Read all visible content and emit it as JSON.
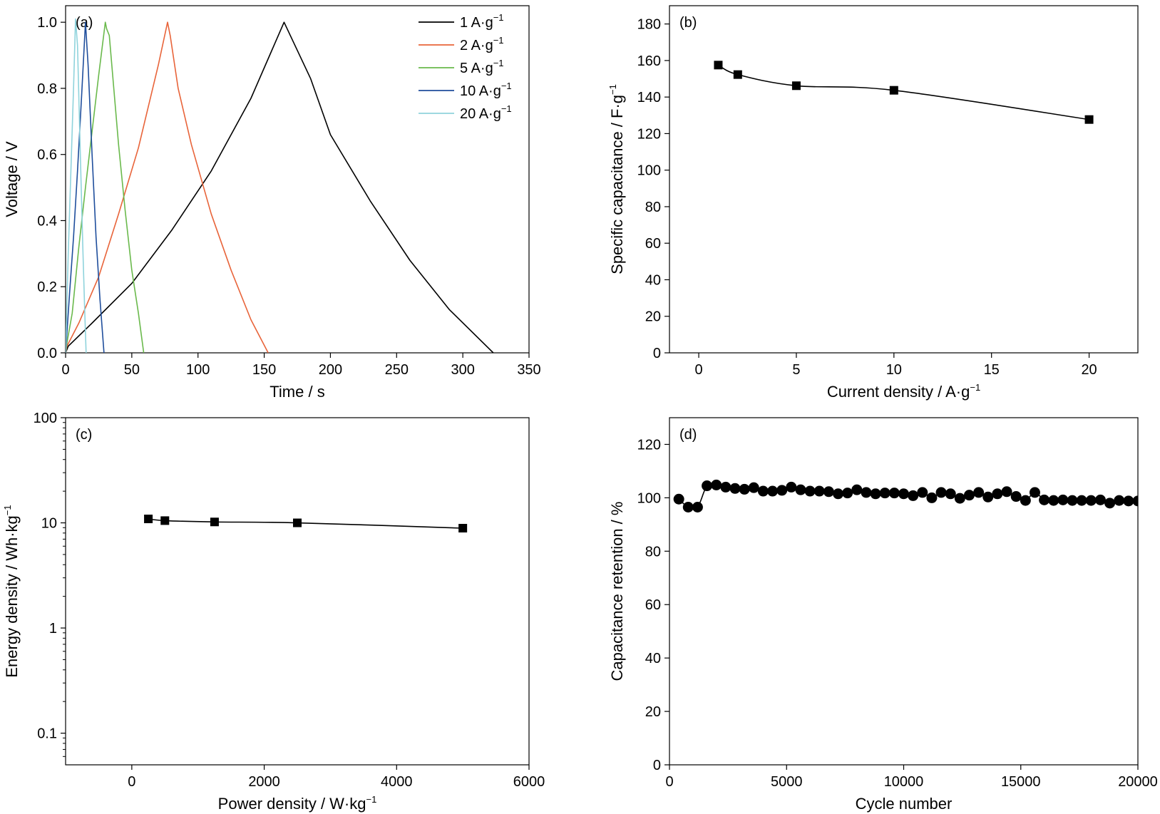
{
  "chart_data": [
    {
      "panel": "(a)",
      "type": "line",
      "xlabel": "Time / s",
      "ylabel": "Voltage / V",
      "xlim": [
        0,
        350
      ],
      "ylim": [
        0,
        1.05
      ],
      "xticks": [
        0,
        50,
        100,
        150,
        200,
        250,
        300,
        350
      ],
      "yticks": [
        0.0,
        0.2,
        0.4,
        0.6,
        0.8,
        1.0
      ],
      "ytick_labels": [
        "0.0",
        "0.2",
        "0.4",
        "0.6",
        "0.8",
        "1.0"
      ],
      "legend_position": "top-right",
      "series": [
        {
          "name": "1 A·g",
          "sup": "−1",
          "color": "#000000",
          "points": [
            [
              0,
              0
            ],
            [
              2,
              0.02
            ],
            [
              20,
              0.09
            ],
            [
              50,
              0.21
            ],
            [
              80,
              0.37
            ],
            [
              110,
              0.55
            ],
            [
              140,
              0.77
            ],
            [
              165,
              1.0
            ],
            [
              185,
              0.83
            ],
            [
              200,
              0.66
            ],
            [
              230,
              0.46
            ],
            [
              260,
              0.28
            ],
            [
              290,
              0.13
            ],
            [
              323,
              0.0
            ]
          ]
        },
        {
          "name": "2 A·g",
          "sup": "−1",
          "color": "#e8643a",
          "points": [
            [
              0,
              0
            ],
            [
              1,
              0.02
            ],
            [
              10,
              0.09
            ],
            [
              25,
              0.23
            ],
            [
              40,
              0.42
            ],
            [
              55,
              0.62
            ],
            [
              70,
              0.87
            ],
            [
              77,
              1.0
            ],
            [
              79,
              0.96
            ],
            [
              85,
              0.8
            ],
            [
              95,
              0.63
            ],
            [
              110,
              0.42
            ],
            [
              125,
              0.25
            ],
            [
              140,
              0.1
            ],
            [
              153,
              0.0
            ]
          ]
        },
        {
          "name": "5 A·g",
          "sup": "−1",
          "color": "#6ab94c",
          "points": [
            [
              0,
              0
            ],
            [
              1,
              0.03
            ],
            [
              5,
              0.12
            ],
            [
              10,
              0.32
            ],
            [
              15,
              0.5
            ],
            [
              20,
              0.67
            ],
            [
              25,
              0.84
            ],
            [
              30,
              1.0
            ],
            [
              31,
              0.98
            ],
            [
              33,
              0.96
            ],
            [
              40,
              0.63
            ],
            [
              45,
              0.43
            ],
            [
              50,
              0.25
            ],
            [
              55,
              0.12
            ],
            [
              59,
              0.0
            ]
          ]
        },
        {
          "name": "10 A·g",
          "sup": "−1",
          "color": "#1f4e9c",
          "points": [
            [
              0,
              0
            ],
            [
              1,
              0.06
            ],
            [
              3,
              0.18
            ],
            [
              6,
              0.35
            ],
            [
              9,
              0.55
            ],
            [
              12,
              0.77
            ],
            [
              15,
              1.0
            ],
            [
              17,
              0.87
            ],
            [
              20,
              0.6
            ],
            [
              23,
              0.35
            ],
            [
              26,
              0.16
            ],
            [
              29,
              0.0
            ]
          ]
        },
        {
          "name": "20 A·g",
          "sup": "−1",
          "color": "#8fd3dc",
          "points": [
            [
              0,
              0
            ],
            [
              1,
              0.15
            ],
            [
              2,
              0.3
            ],
            [
              4,
              0.55
            ],
            [
              6,
              0.8
            ],
            [
              7.5,
              1.01
            ],
            [
              9,
              0.93
            ],
            [
              11,
              0.62
            ],
            [
              13,
              0.32
            ],
            [
              14.5,
              0.12
            ],
            [
              15.5,
              0.0
            ]
          ]
        }
      ]
    },
    {
      "panel": "(b)",
      "type": "line",
      "xlabel": "Current density / A·g",
      "xlabel_sup": "−1",
      "ylabel": "Specific capacitance / F·g",
      "ylabel_sup": "−1",
      "xlim": [
        -1.5,
        22.5
      ],
      "ylim": [
        0,
        190
      ],
      "xticks": [
        0,
        5,
        10,
        15,
        20
      ],
      "yticks": [
        0,
        20,
        40,
        60,
        80,
        100,
        120,
        140,
        160,
        180
      ],
      "series": [
        {
          "name": "",
          "marker": "square",
          "x": [
            1,
            2,
            5,
            10,
            20
          ],
          "y": [
            157.5,
            152.3,
            146.2,
            143.7,
            127.7
          ]
        }
      ]
    },
    {
      "panel": "(c)",
      "type": "line",
      "xlabel": "Power density / W·kg",
      "xlabel_sup": "−1",
      "ylabel": "Energy density / Wh·kg",
      "ylabel_sup": "−1",
      "xlim": [
        -1000,
        6000
      ],
      "ylim": [
        0.05,
        100
      ],
      "yscale": "log",
      "xticks": [
        0,
        2000,
        4000,
        6000
      ],
      "yticks": [
        0.1,
        1,
        10,
        100
      ],
      "ytick_labels": [
        "0.1",
        "1",
        "10",
        "100"
      ],
      "series": [
        {
          "name": "",
          "marker": "square",
          "x": [
            250,
            500,
            1250,
            2500,
            5000
          ],
          "y": [
            10.9,
            10.5,
            10.2,
            10.0,
            8.9
          ]
        }
      ]
    },
    {
      "panel": "(d)",
      "type": "scatter",
      "xlabel": "Cycle number",
      "ylabel": "Capacitance retention / %",
      "xlim": [
        0,
        20000
      ],
      "ylim": [
        0,
        130
      ],
      "xticks": [
        0,
        5000,
        10000,
        15000,
        20000
      ],
      "yticks": [
        0,
        20,
        40,
        60,
        80,
        100,
        120
      ],
      "series": [
        {
          "name": "",
          "marker": "circle",
          "x": [
            400,
            800,
            1200,
            1600,
            2000,
            2400,
            2800,
            3200,
            3600,
            4000,
            4400,
            4800,
            5200,
            5600,
            6000,
            6400,
            6800,
            7200,
            7600,
            8000,
            8400,
            8800,
            9200,
            9600,
            10000,
            10400,
            10800,
            11200,
            11600,
            12000,
            12400,
            12800,
            13200,
            13600,
            14000,
            14400,
            14800,
            15200,
            15600,
            16000,
            16400,
            16800,
            17200,
            17600,
            18000,
            18400,
            18800,
            19200,
            19600,
            20000
          ],
          "y": [
            99.5,
            96.5,
            96.5,
            104.5,
            104.8,
            104.0,
            103.5,
            103.2,
            103.8,
            102.5,
            102.5,
            102.8,
            104.0,
            103.0,
            102.5,
            102.5,
            102.3,
            101.5,
            101.8,
            103.0,
            102.0,
            101.5,
            101.8,
            101.8,
            101.5,
            100.8,
            102.0,
            100.0,
            102.0,
            101.5,
            99.8,
            101.0,
            102.0,
            100.3,
            101.5,
            102.3,
            100.5,
            99.0,
            102.0,
            99.2,
            99.0,
            99.2,
            99.0,
            99.0,
            99.0,
            99.2,
            98.0,
            99.0,
            98.8,
            98.8
          ]
        }
      ]
    }
  ]
}
